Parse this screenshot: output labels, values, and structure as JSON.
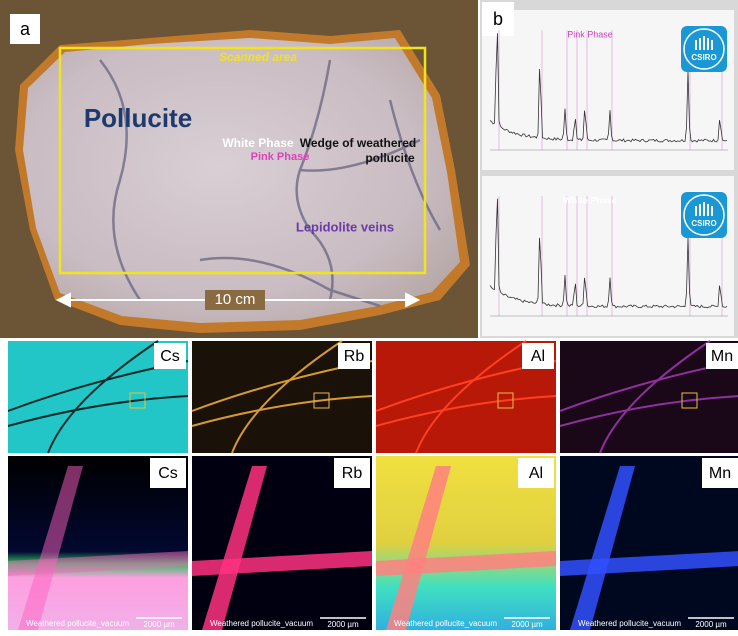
{
  "panel_a": {
    "label": "a",
    "scanned_area": "Scanned area",
    "mineral": "Pollucite",
    "white_phase": "White Phase",
    "pink_phase": "Pink Phase",
    "wedge": [
      "Wedge of weathered",
      "pollucite"
    ],
    "veins": "Lepidolite veins",
    "scale": "10 cm"
  },
  "panel_b": {
    "label": "b",
    "spectra": [
      {
        "title": "Pink Phase",
        "logo": "CSIRO"
      },
      {
        "title": "White Phase",
        "logo": "CSIRO"
      }
    ]
  },
  "maps_low": [
    {
      "element": "Cs"
    },
    {
      "element": "Rb"
    },
    {
      "element": "Al"
    },
    {
      "element": "Mn"
    }
  ],
  "maps_high": [
    {
      "element": "Cs",
      "caption": "Weathered pollucite_vacuum",
      "scale": "2000 µm"
    },
    {
      "element": "Rb",
      "caption": "Weathered pollucite_vacuum",
      "scale": "2000 µm"
    },
    {
      "element": "Al",
      "caption": "Weathered pollucite_vacuum",
      "scale": "2000 µm"
    },
    {
      "element": "Mn",
      "caption": "Weathered pollucite_vacuum",
      "scale": "2000 µm"
    }
  ]
}
